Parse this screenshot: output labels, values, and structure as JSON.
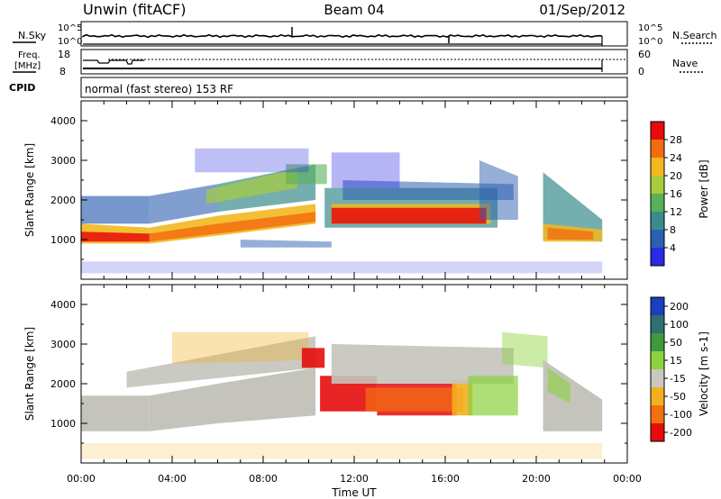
{
  "header": {
    "station": "Unwin (fitACF)",
    "beam": "Beam 04",
    "date": "01/Sep/2012"
  },
  "sky_panel": {
    "left_label": "N.Sky",
    "right_label": "N.Search",
    "left_ticks": [
      "10^5",
      "10^0"
    ],
    "right_ticks": [
      "10^5",
      "10^0"
    ]
  },
  "freq_panel": {
    "left_label_1": "Freq.",
    "left_label_2": "[MHz]",
    "right_label": "Nave",
    "left_ticks": [
      "18",
      "8"
    ],
    "right_ticks": [
      "60",
      "0"
    ]
  },
  "cpid": {
    "label": "CPID",
    "text": "normal (fast stereo) 153 RF"
  },
  "colors": {
    "power_scale": [
      "#2a2ae6",
      "#2b5fb0",
      "#3a8c8c",
      "#58b058",
      "#a8cc3c",
      "#f2b81e",
      "#f26d10",
      "#e60c0c"
    ],
    "velocity_scale": [
      "#1e3ec0",
      "#2f6f70",
      "#3f9a3f",
      "#8cd23c",
      "#c8c8c0",
      "#f2b01e",
      "#f27012",
      "#e60c0c"
    ],
    "ground_scatter": "#c4c4bc"
  },
  "chart_data": [
    {
      "type": "heatmap",
      "name": "power",
      "xlabel": "",
      "ylabel": "Slant Range [km]",
      "xlim": [
        0,
        24
      ],
      "ylim": [
        0,
        4500
      ],
      "yticks": [
        "4000",
        "3000",
        "2000",
        "1000"
      ],
      "colorbar": {
        "label": "Power [dB]",
        "ticks": [
          "28",
          "24",
          "20",
          "16",
          "12",
          "8",
          "4"
        ],
        "range": [
          0,
          32
        ]
      }
    },
    {
      "type": "heatmap",
      "name": "velocity",
      "xlabel": "Time UT",
      "ylabel": "Slant Range [km]",
      "xlim": [
        0,
        24
      ],
      "ylim": [
        0,
        4500
      ],
      "yticks": [
        "4000",
        "3000",
        "2000",
        "1000"
      ],
      "xticks": [
        "00:00",
        "04:00",
        "08:00",
        "12:00",
        "16:00",
        "20:00",
        "00:00"
      ],
      "colorbar": {
        "label": "Velocity [m s-1]",
        "ticks": [
          "200",
          "100",
          "50",
          "15",
          "-15",
          "-50",
          "-100",
          "-200"
        ]
      }
    }
  ]
}
